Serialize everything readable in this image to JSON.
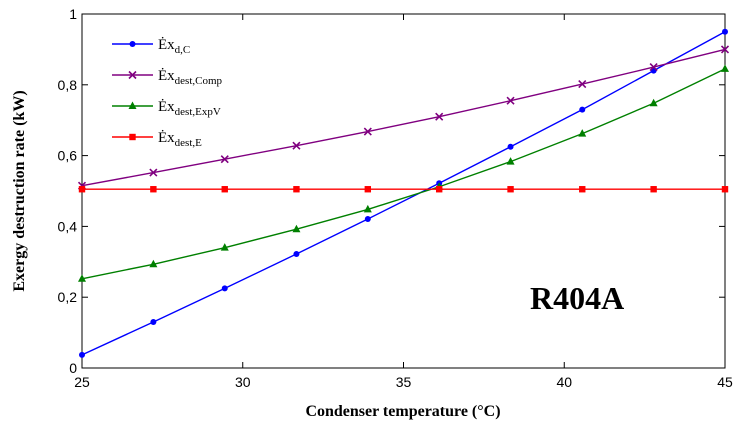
{
  "chart_data": {
    "type": "line",
    "xlabel": "Condenser temperature (°C)",
    "ylabel": "Exergy destruction rate (kW)",
    "xlim": [
      25,
      45
    ],
    "ylim": [
      0,
      1
    ],
    "x_ticks": [
      25,
      30,
      35,
      40,
      45
    ],
    "y_ticks": [
      0,
      0.2,
      0.4,
      0.6,
      0.8,
      1
    ],
    "y_tick_labels": [
      "0",
      "0,2",
      "0,4",
      "0,6",
      "0,8",
      "1"
    ],
    "legend_position": "top-left",
    "grid": false,
    "annotation": "R404A",
    "series": [
      {
        "name_main": "Ėx",
        "name_sub": "d,C",
        "color": "#0000ff",
        "marker": "circle",
        "x": [
          25,
          27.22,
          29.44,
          31.67,
          33.89,
          36.11,
          38.33,
          40.56,
          42.78,
          45
        ],
        "y": [
          0.037,
          0.13,
          0.225,
          0.322,
          0.421,
          0.522,
          0.625,
          0.73,
          0.84,
          0.95
        ]
      },
      {
        "name_main": "Ėx",
        "name_sub": "dest,Comp",
        "color": "#800080",
        "marker": "x",
        "x": [
          25,
          27.22,
          29.44,
          31.67,
          33.89,
          36.11,
          38.33,
          40.56,
          42.78,
          45
        ],
        "y": [
          0.515,
          0.552,
          0.59,
          0.628,
          0.668,
          0.71,
          0.755,
          0.802,
          0.85,
          0.9
        ]
      },
      {
        "name_main": "Ėx",
        "name_sub": "dest,ExpV",
        "color": "#008000",
        "marker": "triangle",
        "x": [
          25,
          27.22,
          29.44,
          31.67,
          33.89,
          36.11,
          38.33,
          40.56,
          42.78,
          45
        ],
        "y": [
          0.252,
          0.293,
          0.34,
          0.392,
          0.448,
          0.512,
          0.583,
          0.662,
          0.748,
          0.845
        ]
      },
      {
        "name_main": "Ėx",
        "name_sub": "dest,E",
        "color": "#ff0000",
        "marker": "square",
        "x": [
          25,
          27.22,
          29.44,
          31.67,
          33.89,
          36.11,
          38.33,
          40.56,
          42.78,
          45
        ],
        "y": [
          0.505,
          0.505,
          0.505,
          0.505,
          0.505,
          0.505,
          0.505,
          0.505,
          0.505,
          0.505
        ]
      }
    ]
  }
}
